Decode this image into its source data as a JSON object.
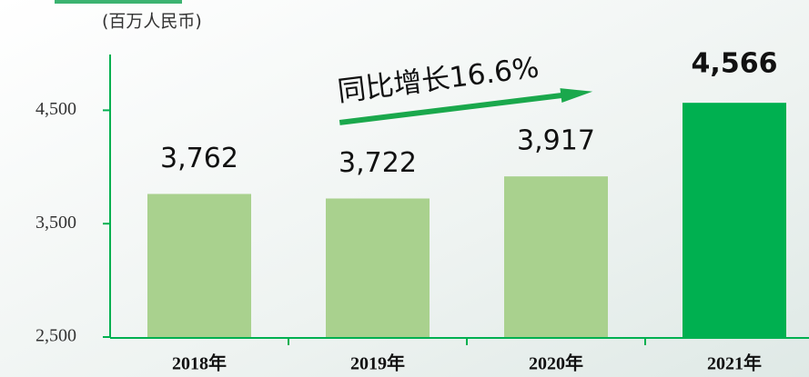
{
  "chart_data": {
    "type": "bar",
    "unit_label": "(百万人民币)",
    "annotation": "同比增长16.6%",
    "categories": [
      "2018年",
      "2019年",
      "2020年",
      "2021年"
    ],
    "values": [
      3762,
      3722,
      3917,
      4566
    ],
    "value_labels": [
      "3,762",
      "3,722",
      "3,917",
      "4,566"
    ],
    "colors": [
      "#a9d18e",
      "#a9d18e",
      "#a9d18e",
      "#00b050"
    ],
    "ylim": [
      2500,
      5000
    ],
    "yticks": [
      {
        "value": 2500,
        "label": "2,500"
      },
      {
        "value": 3500,
        "label": "3,500"
      },
      {
        "value": 4500,
        "label": "4,500"
      }
    ]
  }
}
